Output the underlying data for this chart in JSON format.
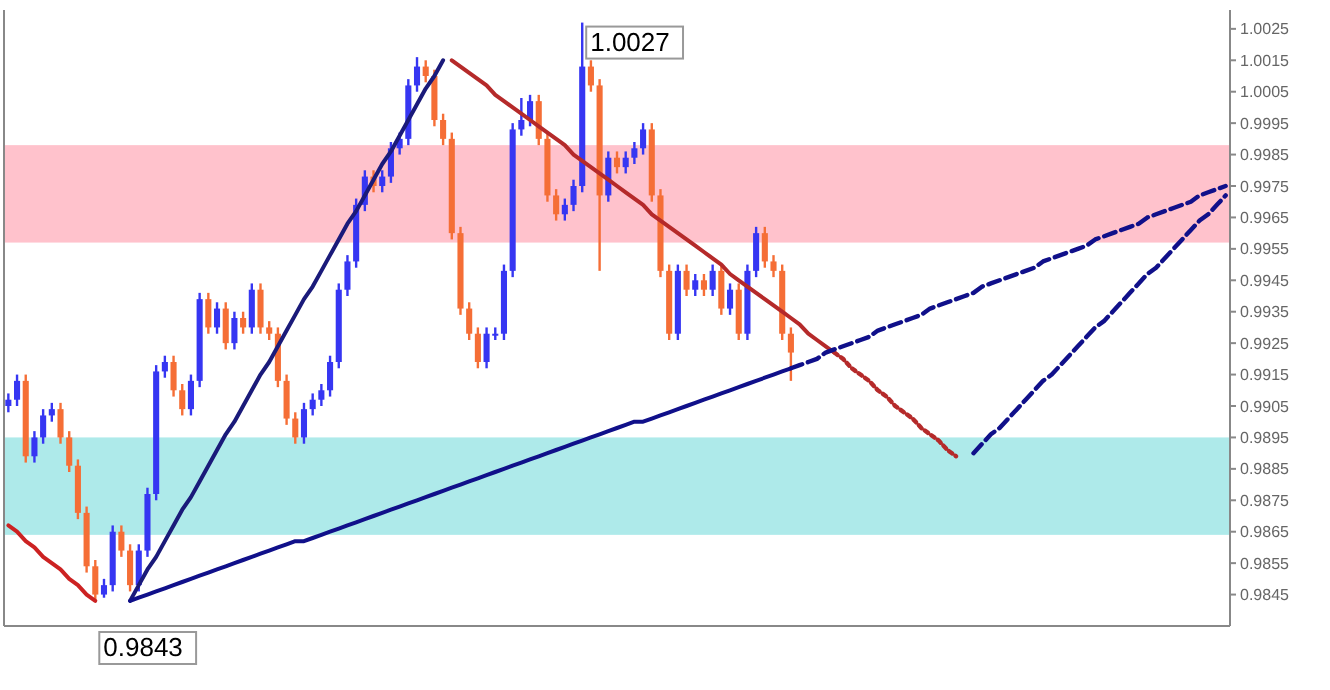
{
  "chart_data": {
    "type": "candlestick",
    "categories": [
      null,
      null,
      null,
      null,
      null,
      null,
      null,
      null,
      null,
      null,
      null,
      null,
      null,
      null,
      null,
      null,
      null,
      null,
      null,
      null,
      null,
      null,
      null,
      null,
      null,
      null,
      null,
      null,
      null,
      null,
      null,
      null,
      null,
      null,
      null,
      null,
      null,
      null,
      null,
      null,
      null,
      null,
      null,
      null,
      null,
      null,
      null,
      null,
      null,
      null,
      null,
      null,
      null,
      null,
      null,
      null,
      null,
      null,
      null,
      null,
      null,
      null,
      null,
      null,
      null,
      null,
      null,
      null,
      null,
      null,
      null,
      null,
      null,
      null,
      null,
      null,
      null,
      null,
      null,
      null,
      null,
      null,
      null,
      null,
      null,
      null,
      null,
      null,
      null,
      null,
      null,
      null,
      null,
      null,
      null,
      null,
      null,
      null,
      null,
      null,
      null,
      null,
      null,
      null,
      null,
      null,
      null,
      null,
      null,
      null,
      null,
      null,
      null,
      null,
      null,
      null,
      null,
      null,
      null,
      null,
      null,
      null,
      null,
      null,
      null,
      null,
      null,
      null,
      null,
      null,
      null,
      null,
      null,
      null,
      null,
      null,
      null,
      null,
      null,
      null,
      null
    ],
    "colors": [
      "#3636f2",
      "#3636f2",
      "#f56e36",
      "#3636f2",
      "#3636f2",
      "#3636f2",
      "#f56e36",
      "#f56e36",
      "#f56e36",
      "#f56e36",
      "#f56e36",
      "#3636f2",
      "#3636f2",
      "#f56e36",
      "#f56e36",
      "#3636f2",
      "#3636f2",
      "#3636f2",
      "#3636f2",
      "#f56e36",
      "#f56e36",
      "#3636f2",
      "#3636f2",
      "#f56e36",
      "#3636f2",
      "#f56e36",
      "#3636f2",
      "#f56e36",
      "#3636f2",
      "#f56e36",
      "#f56e36",
      "#f56e36",
      "#f56e36",
      "#f56e36",
      "#3636f2",
      "#3636f2",
      "#3636f2",
      "#3636f2",
      "#3636f2",
      "#3636f2",
      "#3636f2",
      "#3636f2",
      "#f56e36",
      "#3636f2",
      "#3636f2",
      "#3636f2",
      "#3636f2",
      "#3636f2",
      "#f56e36",
      "#f56e36",
      "#f56e36",
      "#f56e36",
      "#f56e36",
      "#f56e36",
      "#f56e36",
      "#3636f2",
      "#3636f2",
      "#3636f2",
      "#3636f2",
      "#3636f2",
      "#3636f2",
      "#f56e36",
      "#f56e36",
      "#f56e36",
      "#3636f2",
      "#3636f2",
      "#3636f2",
      "#f56e36",
      "#f56e36",
      "#3636f2",
      "#f56e36",
      "#3636f2",
      "#3636f2",
      "#3636f2",
      "#f56e36",
      "#f56e36",
      "#f56e36",
      "#3636f2",
      "#f56e36",
      "#3636f2",
      "#f56e36",
      "#3636f2",
      "#f56e36",
      "#3636f2",
      "#f56e36",
      "#3636f2",
      "#3636f2",
      "#f56e36",
      "#f56e36",
      "#f56e36",
      "#f56e36",
      null,
      null,
      null,
      null,
      null,
      null,
      null,
      null,
      null,
      null,
      null,
      null,
      null,
      null,
      null,
      null,
      null,
      null,
      null,
      null,
      null,
      null,
      null,
      null,
      null,
      null,
      null,
      null,
      null,
      null,
      null,
      null,
      null,
      null,
      null,
      null,
      null,
      null,
      null,
      null,
      null,
      null,
      null,
      null,
      null,
      null,
      null,
      null,
      null,
      null
    ],
    "ylim": [
      0.9835,
      1.0031
    ],
    "yticks": [
      0.9845,
      0.9855,
      0.9865,
      0.9875,
      0.9885,
      0.9895,
      0.9905,
      0.9915,
      0.9925,
      0.9935,
      0.9945,
      0.9955,
      0.9965,
      0.9975,
      0.9985,
      0.9995,
      1.0005,
      1.0015,
      1.0025
    ],
    "ohlc": [
      [
        0.9905,
        0.9909,
        0.9903,
        0.9907
      ],
      [
        0.9907,
        0.9915,
        0.9905,
        0.9913
      ],
      [
        0.9913,
        0.9915,
        0.9887,
        0.9889
      ],
      [
        0.9889,
        0.9897,
        0.9887,
        0.9895
      ],
      [
        0.9895,
        0.9904,
        0.9893,
        0.9902
      ],
      [
        0.9902,
        0.9906,
        0.99,
        0.9904
      ],
      [
        0.9904,
        0.9906,
        0.9893,
        0.9895
      ],
      [
        0.9895,
        0.9897,
        0.9884,
        0.9886
      ],
      [
        0.9886,
        0.9888,
        0.9869,
        0.9871
      ],
      [
        0.9871,
        0.9873,
        0.9852,
        0.9854
      ],
      [
        0.9854,
        0.9856,
        0.9843,
        0.9845
      ],
      [
        0.9845,
        0.985,
        0.9844,
        0.9848
      ],
      [
        0.9848,
        0.9867,
        0.9846,
        0.9865
      ],
      [
        0.9865,
        0.9867,
        0.9857,
        0.9859
      ],
      [
        0.9859,
        0.9861,
        0.9846,
        0.9848
      ],
      [
        0.9848,
        0.9861,
        0.9846,
        0.9859
      ],
      [
        0.9859,
        0.9879,
        0.9857,
        0.9877
      ],
      [
        0.9877,
        0.9918,
        0.9875,
        0.9916
      ],
      [
        0.9916,
        0.9921,
        0.9914,
        0.9919
      ],
      [
        0.9919,
        0.9921,
        0.9908,
        0.991
      ],
      [
        0.991,
        0.9912,
        0.9902,
        0.9904
      ],
      [
        0.9904,
        0.9915,
        0.9902,
        0.9913
      ],
      [
        0.9913,
        0.9941,
        0.9911,
        0.9939
      ],
      [
        0.9939,
        0.9941,
        0.9928,
        0.993
      ],
      [
        0.993,
        0.9938,
        0.9928,
        0.9936
      ],
      [
        0.9936,
        0.9938,
        0.9923,
        0.9925
      ],
      [
        0.9925,
        0.9935,
        0.9923,
        0.9933
      ],
      [
        0.9933,
        0.9935,
        0.9928,
        0.993
      ],
      [
        0.993,
        0.9944,
        0.9928,
        0.9942
      ],
      [
        0.9942,
        0.9944,
        0.9928,
        0.993
      ],
      [
        0.993,
        0.9932,
        0.9926,
        0.9928
      ],
      [
        0.9928,
        0.993,
        0.9911,
        0.9913
      ],
      [
        0.9913,
        0.9915,
        0.9899,
        0.9901
      ],
      [
        0.9901,
        0.9903,
        0.9893,
        0.9895
      ],
      [
        0.9895,
        0.9906,
        0.9893,
        0.9904
      ],
      [
        0.9904,
        0.9909,
        0.9902,
        0.9907
      ],
      [
        0.9907,
        0.9912,
        0.9905,
        0.991
      ],
      [
        0.991,
        0.9921,
        0.9908,
        0.9919
      ],
      [
        0.9919,
        0.9944,
        0.9917,
        0.9942
      ],
      [
        0.9942,
        0.9953,
        0.994,
        0.9951
      ],
      [
        0.9951,
        0.9971,
        0.9949,
        0.9969
      ],
      [
        0.9969,
        0.998,
        0.9967,
        0.9978
      ],
      [
        0.9978,
        0.998,
        0.9973,
        0.9975
      ],
      [
        0.9975,
        0.998,
        0.9973,
        0.9978
      ],
      [
        0.9978,
        0.9989,
        0.9976,
        0.9987
      ],
      [
        0.9987,
        0.9992,
        0.9985,
        0.999
      ],
      [
        0.999,
        1.0009,
        0.9988,
        1.0007
      ],
      [
        1.0007,
        1.0016,
        1.0005,
        1.0013
      ],
      [
        1.0013,
        1.0015,
        1.0008,
        1.001
      ],
      [
        1.001,
        1.0012,
        0.9994,
        0.9996
      ],
      [
        0.9996,
        0.9998,
        0.9988,
        0.999
      ],
      [
        0.999,
        0.9992,
        0.9958,
        0.996
      ],
      [
        0.996,
        0.9962,
        0.9934,
        0.9936
      ],
      [
        0.9936,
        0.9938,
        0.9926,
        0.9928
      ],
      [
        0.9928,
        0.993,
        0.9917,
        0.9919
      ],
      [
        0.9919,
        0.993,
        0.9917,
        0.9928
      ],
      [
        0.9928,
        0.993,
        0.9926,
        0.9928
      ],
      [
        0.9928,
        0.995,
        0.9926,
        0.9948
      ],
      [
        0.9948,
        0.9995,
        0.9946,
        0.9993
      ],
      [
        0.9993,
        1.0003,
        0.9991,
        0.9996
      ],
      [
        0.9996,
        1.0004,
        0.9994,
        1.0002
      ],
      [
        1.0002,
        1.0004,
        0.9988,
        0.999
      ],
      [
        0.999,
        0.9992,
        0.997,
        0.9972
      ],
      [
        0.9972,
        0.9974,
        0.9964,
        0.9966
      ],
      [
        0.9966,
        0.9971,
        0.9964,
        0.9969
      ],
      [
        0.9969,
        0.9977,
        0.9967,
        0.9975
      ],
      [
        0.9975,
        1.0027,
        0.9973,
        1.0013
      ],
      [
        1.0013,
        1.0015,
        1.0005,
        1.0007
      ],
      [
        1.0007,
        1.0009,
        0.9948,
        0.9972
      ],
      [
        0.9972,
        0.9986,
        0.997,
        0.9984
      ],
      [
        0.9984,
        0.9986,
        0.9979,
        0.9981
      ],
      [
        0.9981,
        0.9986,
        0.9979,
        0.9984
      ],
      [
        0.9984,
        0.9989,
        0.9982,
        0.9987
      ],
      [
        0.9987,
        0.9995,
        0.9985,
        0.9993
      ],
      [
        0.9993,
        0.9995,
        0.997,
        0.9972
      ],
      [
        0.9972,
        0.9974,
        0.9946,
        0.9948
      ],
      [
        0.9948,
        0.995,
        0.9926,
        0.9928
      ],
      [
        0.9928,
        0.995,
        0.9926,
        0.9948
      ],
      [
        0.9948,
        0.995,
        0.994,
        0.9942
      ],
      [
        0.9942,
        0.9947,
        0.994,
        0.9945
      ],
      [
        0.9945,
        0.9947,
        0.994,
        0.9942
      ],
      [
        0.9942,
        0.995,
        0.994,
        0.9948
      ],
      [
        0.9948,
        0.995,
        0.9934,
        0.9936
      ],
      [
        0.9936,
        0.9944,
        0.9934,
        0.9942
      ],
      [
        0.9942,
        0.9944,
        0.9926,
        0.9928
      ],
      [
        0.9928,
        0.995,
        0.9926,
        0.9948
      ],
      [
        0.9948,
        0.9962,
        0.9946,
        0.996
      ],
      [
        0.996,
        0.9962,
        0.9949,
        0.9951
      ],
      [
        0.9951,
        0.9953,
        0.9946,
        0.9948
      ],
      [
        0.9948,
        0.995,
        0.9926,
        0.9928
      ],
      [
        0.9928,
        0.993,
        0.9913,
        0.9922
      ],
      null,
      null,
      null,
      null,
      null,
      null,
      null,
      null,
      null,
      null,
      null,
      null,
      null,
      null,
      null,
      null,
      null,
      null,
      null,
      null,
      null,
      null,
      null,
      null,
      null,
      null,
      null,
      null,
      null,
      null,
      null,
      null,
      null,
      null,
      null,
      null,
      null,
      null,
      null,
      null,
      null,
      null,
      null,
      null,
      null,
      null,
      null,
      null,
      null,
      null
    ],
    "bands": [
      {
        "axis": "y",
        "from": 0.9957,
        "to": 0.9988,
        "color": "#ffc2cc"
      },
      {
        "axis": "y",
        "from": 0.9864,
        "to": 0.9895,
        "color": "#aeeaea"
      }
    ],
    "series": [
      {
        "type": "line",
        "color": "#cc2222",
        "line_style": "solid",
        "values": [
          0.9867,
          0.9865,
          0.9862,
          0.986,
          0.9857,
          0.9855,
          0.9853,
          0.985,
          0.9848,
          0.9845,
          0.9843,
          null,
          null,
          null,
          null,
          null,
          null,
          null,
          null,
          null,
          null,
          null,
          null,
          null,
          null,
          null,
          null,
          null,
          null,
          null,
          null,
          null,
          null,
          null,
          null,
          null,
          null,
          null,
          null,
          null,
          null,
          null,
          null,
          null,
          null,
          null,
          null,
          null,
          null,
          null,
          null,
          null,
          null,
          null,
          null,
          null,
          null,
          null,
          null,
          null,
          null,
          null,
          null,
          null,
          null,
          null,
          null,
          null,
          null,
          null,
          null,
          null,
          null,
          null,
          null,
          null,
          null,
          null,
          null,
          null,
          null,
          null,
          null,
          null,
          null,
          null,
          null,
          null,
          null,
          null,
          null,
          null,
          null,
          null,
          null,
          null,
          null,
          null,
          null,
          null,
          null,
          null,
          null,
          null,
          null,
          null,
          null,
          null,
          null,
          null,
          null,
          null,
          null,
          null,
          null,
          null,
          null,
          null,
          null,
          null,
          null,
          null,
          null,
          null,
          null,
          null,
          null,
          null,
          null,
          null,
          null,
          null,
          null,
          null,
          null,
          null,
          null,
          null,
          null,
          null,
          null
        ]
      },
      {
        "type": "line",
        "color": "#1a1a7a",
        "line_style": "solid",
        "values": [
          null,
          null,
          null,
          null,
          null,
          null,
          null,
          null,
          null,
          null,
          null,
          null,
          null,
          null,
          0.9843,
          0.9848,
          0.9853,
          0.9857,
          0.9862,
          0.9867,
          0.9872,
          0.9876,
          0.9881,
          0.9886,
          0.9891,
          0.9896,
          0.99,
          0.9905,
          0.991,
          0.9915,
          0.9919,
          0.9924,
          0.9929,
          0.9934,
          0.9939,
          0.9943,
          0.9948,
          0.9953,
          0.9958,
          0.9963,
          0.9967,
          0.9972,
          0.9977,
          0.9982,
          0.9986,
          0.9991,
          0.9996,
          1.0001,
          1.0006,
          1.001,
          1.0015,
          null,
          null,
          null,
          null,
          null,
          null,
          null,
          null,
          null,
          null,
          null,
          null,
          null,
          null,
          null,
          null,
          null,
          null,
          null,
          null,
          null,
          null,
          null,
          null,
          null,
          null,
          null,
          null,
          null,
          null,
          null,
          null,
          null,
          null,
          null,
          null,
          null,
          null,
          null,
          null,
          null,
          null,
          null,
          null,
          null,
          null,
          null,
          null,
          null,
          null,
          null,
          null,
          null,
          null,
          null,
          null,
          null,
          null,
          null,
          null,
          null,
          null,
          null,
          null,
          null,
          null,
          null,
          null,
          null,
          null,
          null,
          null,
          null,
          null,
          null,
          null,
          null,
          null,
          null,
          null,
          null,
          null,
          null,
          null,
          null,
          null,
          null,
          null,
          null,
          null
        ]
      },
      {
        "type": "line",
        "color": "#b52a2a",
        "line_style": "solid",
        "values": [
          null,
          null,
          null,
          null,
          null,
          null,
          null,
          null,
          null,
          null,
          null,
          null,
          null,
          null,
          null,
          null,
          null,
          null,
          null,
          null,
          null,
          null,
          null,
          null,
          null,
          null,
          null,
          null,
          null,
          null,
          null,
          null,
          null,
          null,
          null,
          null,
          null,
          null,
          null,
          null,
          null,
          null,
          null,
          null,
          null,
          null,
          null,
          null,
          null,
          null,
          null,
          1.0015,
          1.0013,
          1.0011,
          1.0009,
          1.0007,
          1.0004,
          1.0002,
          1.0,
          0.9998,
          0.9996,
          0.9994,
          0.9992,
          0.999,
          0.9988,
          0.9985,
          0.9983,
          0.9981,
          0.9979,
          0.9977,
          0.9975,
          0.9973,
          0.9971,
          0.9969,
          0.9966,
          0.9964,
          0.9962,
          0.996,
          0.9958,
          0.9956,
          0.9954,
          0.9952,
          0.995,
          0.9947,
          0.9945,
          0.9943,
          0.9941,
          0.9939,
          0.9937,
          0.9935,
          0.9933,
          0.9931,
          0.9928,
          0.9926,
          0.9924,
          0.9922,
          null,
          null,
          null,
          null,
          null,
          null,
          null,
          null,
          null,
          null,
          null,
          null,
          null,
          null,
          null,
          null,
          null,
          null,
          null,
          null,
          null,
          null,
          null,
          null,
          null,
          null,
          null,
          null,
          null,
          null,
          null,
          null,
          null,
          null,
          null,
          null,
          null,
          null,
          null,
          null,
          null,
          null,
          null,
          null,
          null
        ]
      },
      {
        "type": "line",
        "color": "#b52a2a",
        "line_style": "dotted",
        "values": [
          null,
          null,
          null,
          null,
          null,
          null,
          null,
          null,
          null,
          null,
          null,
          null,
          null,
          null,
          null,
          null,
          null,
          null,
          null,
          null,
          null,
          null,
          null,
          null,
          null,
          null,
          null,
          null,
          null,
          null,
          null,
          null,
          null,
          null,
          null,
          null,
          null,
          null,
          null,
          null,
          null,
          null,
          null,
          null,
          null,
          null,
          null,
          null,
          null,
          null,
          null,
          null,
          null,
          null,
          null,
          null,
          null,
          null,
          null,
          null,
          null,
          null,
          null,
          null,
          null,
          null,
          null,
          null,
          null,
          null,
          null,
          null,
          null,
          null,
          null,
          null,
          null,
          null,
          null,
          null,
          null,
          null,
          null,
          null,
          null,
          null,
          null,
          null,
          null,
          null,
          null,
          null,
          null,
          null,
          null,
          0.9922,
          0.992,
          0.9917,
          0.9915,
          0.9913,
          0.991,
          0.9908,
          0.9905,
          0.9903,
          0.9901,
          0.9898,
          0.9896,
          0.9894,
          0.9891,
          0.9889,
          null,
          null,
          null,
          null,
          null,
          null,
          null,
          null,
          null,
          null,
          null,
          null,
          null,
          null,
          null,
          null,
          null,
          null,
          null,
          null,
          null,
          null,
          null,
          null,
          null,
          null,
          null,
          null,
          null,
          null,
          null
        ]
      },
      {
        "type": "line",
        "color": "#10108a",
        "line_style": "solid",
        "values": [
          null,
          null,
          null,
          null,
          null,
          null,
          null,
          null,
          null,
          null,
          null,
          null,
          null,
          null,
          0.9843,
          0.9844,
          0.9845,
          0.9846,
          0.9847,
          0.9848,
          0.9849,
          0.985,
          0.9851,
          0.9852,
          0.9853,
          0.9854,
          0.9855,
          0.9856,
          0.9857,
          0.9858,
          0.9859,
          0.986,
          0.9861,
          0.9862,
          0.9862,
          0.9863,
          0.9864,
          0.9865,
          0.9866,
          0.9867,
          0.9868,
          0.9869,
          0.987,
          0.9871,
          0.9872,
          0.9873,
          0.9874,
          0.9875,
          0.9876,
          0.9877,
          0.9878,
          0.9879,
          0.988,
          0.9881,
          0.9882,
          0.9883,
          0.9884,
          0.9885,
          0.9886,
          0.9887,
          0.9888,
          0.9889,
          0.989,
          0.9891,
          0.9892,
          0.9893,
          0.9894,
          0.9895,
          0.9896,
          0.9897,
          0.9898,
          0.9899,
          0.99,
          0.99,
          0.9901,
          0.9902,
          0.9903,
          0.9904,
          0.9905,
          0.9906,
          0.9907,
          0.9908,
          0.9909,
          0.991,
          0.9911,
          0.9912,
          0.9913,
          0.9914,
          0.9915,
          0.9916,
          0.9917,
          null,
          null,
          null,
          null,
          null,
          null,
          null,
          null,
          null,
          null,
          null,
          null,
          null,
          null,
          null,
          null,
          null,
          null,
          null,
          null,
          null,
          null,
          null,
          null,
          null,
          null,
          null,
          null,
          null,
          null,
          null,
          null,
          null,
          null,
          null,
          null,
          null,
          null,
          null,
          null,
          null,
          null,
          null,
          null,
          null,
          null,
          null,
          null,
          null,
          null
        ]
      },
      {
        "type": "line",
        "color": "#10108a",
        "line_style": "dashed",
        "values": [
          null,
          null,
          null,
          null,
          null,
          null,
          null,
          null,
          null,
          null,
          null,
          null,
          null,
          null,
          null,
          null,
          null,
          null,
          null,
          null,
          null,
          null,
          null,
          null,
          null,
          null,
          null,
          null,
          null,
          null,
          null,
          null,
          null,
          null,
          null,
          null,
          null,
          null,
          null,
          null,
          null,
          null,
          null,
          null,
          null,
          null,
          null,
          null,
          null,
          null,
          null,
          null,
          null,
          null,
          null,
          null,
          null,
          null,
          null,
          null,
          null,
          null,
          null,
          null,
          null,
          null,
          null,
          null,
          null,
          null,
          null,
          null,
          null,
          null,
          null,
          null,
          null,
          null,
          null,
          null,
          null,
          null,
          null,
          null,
          null,
          null,
          null,
          null,
          null,
          null,
          0.9917,
          0.9918,
          0.9919,
          0.992,
          0.9922,
          0.9923,
          0.9924,
          0.9925,
          0.9926,
          0.9927,
          0.9929,
          0.993,
          0.9931,
          0.9932,
          0.9933,
          0.9934,
          0.9936,
          0.9937,
          0.9938,
          0.9939,
          0.994,
          0.9941,
          0.9943,
          0.9944,
          0.9945,
          0.9946,
          0.9947,
          0.9948,
          0.9949,
          0.9951,
          0.9952,
          0.9953,
          0.9954,
          0.9955,
          0.9956,
          0.9958,
          0.9959,
          0.996,
          0.9961,
          0.9962,
          0.9963,
          0.9965,
          0.9966,
          0.9967,
          0.9968,
          0.9969,
          0.997,
          0.9972,
          0.9973,
          0.9974,
          0.9975
        ]
      },
      {
        "type": "line",
        "color": "#10108a",
        "line_style": "dashed",
        "values": [
          null,
          null,
          null,
          null,
          null,
          null,
          null,
          null,
          null,
          null,
          null,
          null,
          null,
          null,
          null,
          null,
          null,
          null,
          null,
          null,
          null,
          null,
          null,
          null,
          null,
          null,
          null,
          null,
          null,
          null,
          null,
          null,
          null,
          null,
          null,
          null,
          null,
          null,
          null,
          null,
          null,
          null,
          null,
          null,
          null,
          null,
          null,
          null,
          null,
          null,
          null,
          null,
          null,
          null,
          null,
          null,
          null,
          null,
          null,
          null,
          null,
          null,
          null,
          null,
          null,
          null,
          null,
          null,
          null,
          null,
          null,
          null,
          null,
          null,
          null,
          null,
          null,
          null,
          null,
          null,
          null,
          null,
          null,
          null,
          null,
          null,
          null,
          null,
          null,
          null,
          null,
          null,
          null,
          null,
          null,
          null,
          null,
          null,
          null,
          null,
          null,
          null,
          null,
          null,
          null,
          null,
          null,
          null,
          null,
          null,
          null,
          0.989,
          0.9893,
          0.9896,
          0.9898,
          0.9901,
          0.9904,
          0.9907,
          0.991,
          0.9913,
          0.9915,
          0.9918,
          0.9921,
          0.9924,
          0.9927,
          0.993,
          0.9932,
          0.9935,
          0.9938,
          0.9941,
          0.9944,
          0.9947,
          0.9949,
          0.9952,
          0.9955,
          0.9958,
          0.9961,
          0.9964,
          0.9966,
          0.9969,
          0.9972
        ]
      }
    ],
    "annotations": [
      "1.0027",
      "0.9843"
    ]
  }
}
